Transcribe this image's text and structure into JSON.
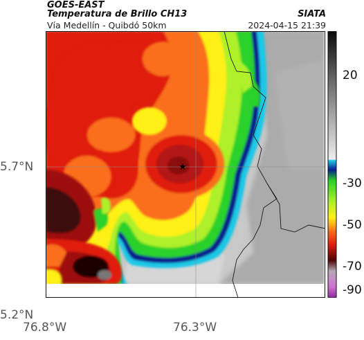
{
  "header": {
    "satellite": "GOES-EAST",
    "product": "Temperatura de Brillo CH13",
    "subtitle": "Vía Medellín - Quibdó 50km",
    "organization": "SIATA",
    "timestamp": "2024-04-15 21:39"
  },
  "map": {
    "lat_labels": [
      "5.7°N",
      "5.2°N"
    ],
    "lon_labels": [
      "76.8°W",
      "76.3°W"
    ],
    "marker": "star-marker",
    "cloud_top_colors": {
      "darkest": "#2a0808",
      "dark_red": "#9e0a0a",
      "red": "#e01f10",
      "orange": "#fa6e1b",
      "yellow": "#fff017",
      "light_green": "#aef02a",
      "green": "#2ad12a",
      "navy_edge": "#0a1e8c",
      "cyan": "#1ec8e6",
      "ground_gray": "#a9a9a9"
    }
  },
  "colorbar": {
    "ticks": [
      "20",
      "-30",
      "-50",
      "-70",
      "-90"
    ]
  }
}
